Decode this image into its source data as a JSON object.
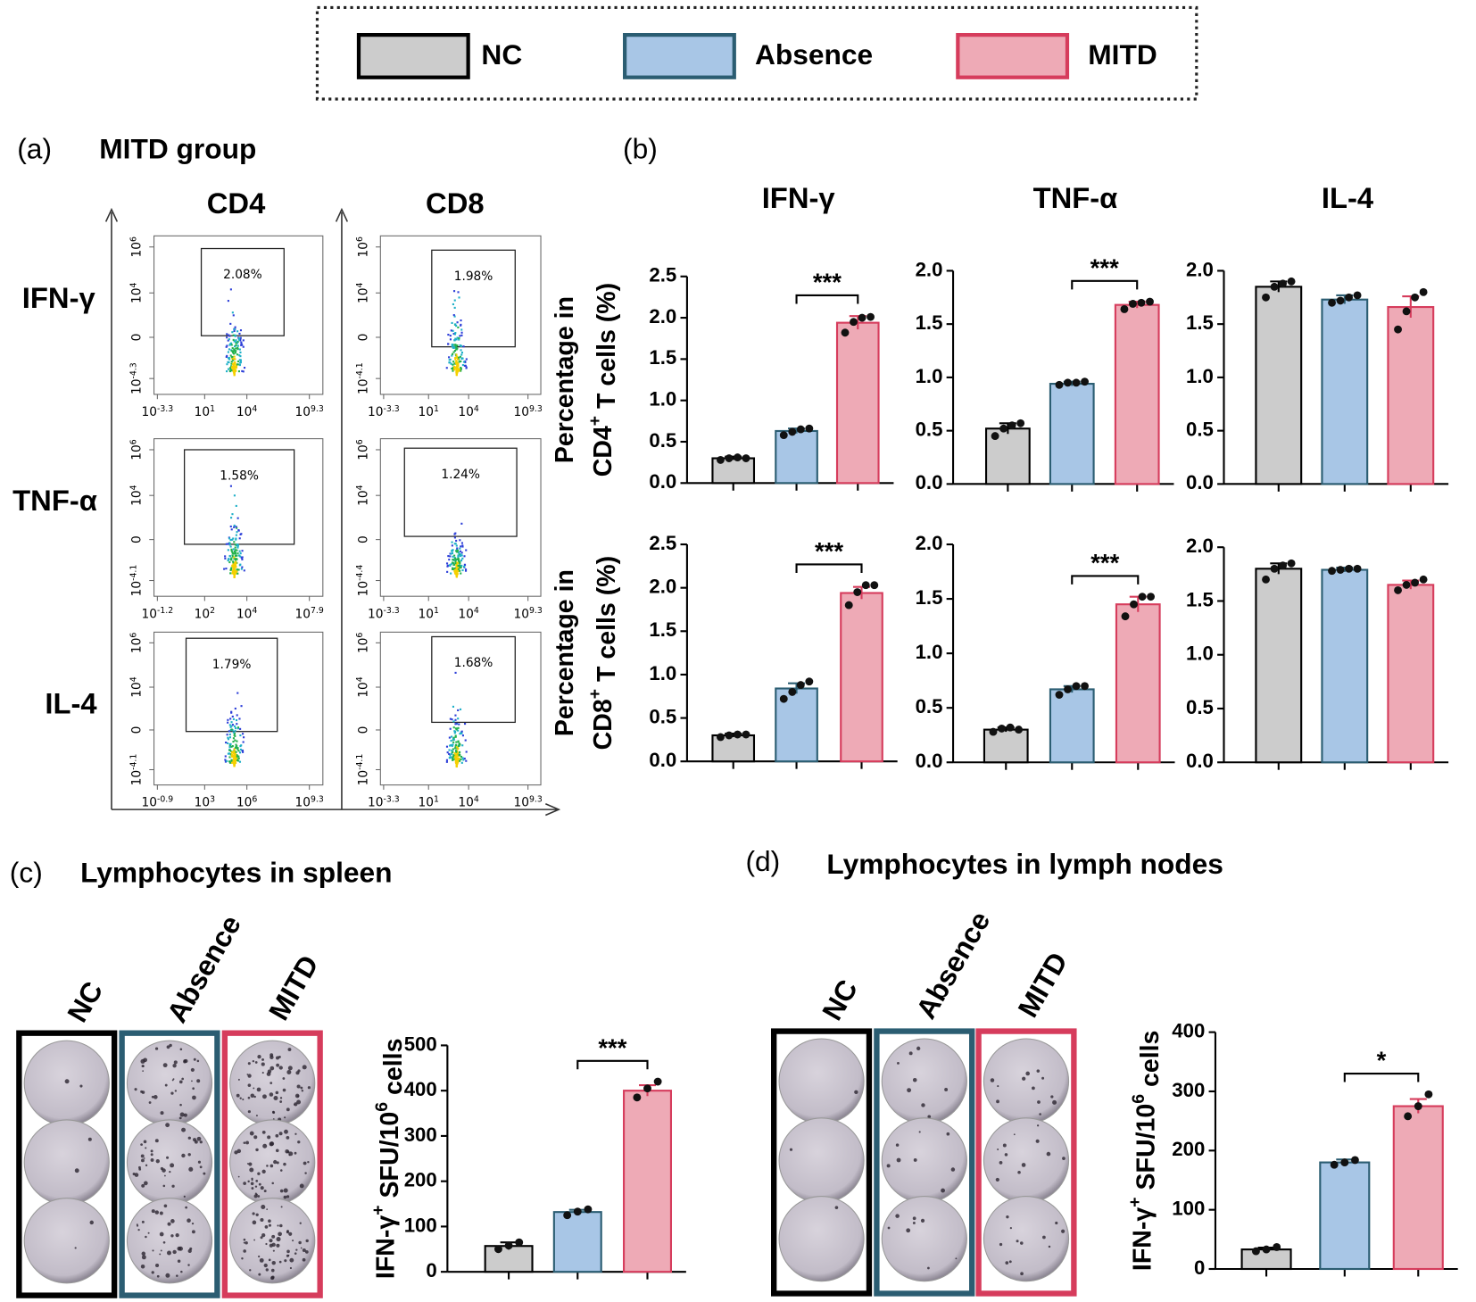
{
  "legend": {
    "items": [
      {
        "name": "NC",
        "color": "#cccccc",
        "border": "#000000"
      },
      {
        "name": "Absence",
        "color": "#a8c6e6",
        "border": "#2b5d72"
      },
      {
        "name": "MITD",
        "color": "#eeaab6",
        "border": "#d63c5c"
      }
    ]
  },
  "panel_a": {
    "label": "(a)",
    "title": "MITD group",
    "columns": [
      "CD4",
      "CD8"
    ],
    "rows": [
      "IFN-γ",
      "TNF-α",
      "IL-4"
    ],
    "plots": [
      [
        {
          "gate": "2.08%",
          "yticks": [
            "10^{6}",
            "10^{4}",
            "0",
            "10^{-4.3}"
          ],
          "xticks": [
            "10^{-3.3}",
            "10^{1}",
            "10^{4}",
            "10^{9.3}"
          ]
        },
        {
          "gate": "1.98%",
          "yticks": [
            "10^{6}",
            "10^{4}",
            "0",
            "10^{-4.1}"
          ],
          "xticks": [
            "10^{-3.3}",
            "10^{1}",
            "10^{4}",
            "10^{9.3}"
          ]
        }
      ],
      [
        {
          "gate": "1.58%",
          "yticks": [
            "10^{6}",
            "10^{4}",
            "0",
            "10^{-4.1}"
          ],
          "xticks": [
            "10^{-1.2}",
            "10^{2}",
            "10^{4}",
            "10^{7.9}"
          ]
        },
        {
          "gate": "1.24%",
          "yticks": [
            "10^{6}",
            "10^{4}",
            "0",
            "10^{-4.4}"
          ],
          "xticks": [
            "10^{-3.3}",
            "10^{1}",
            "10^{4}",
            "10^{9.3}"
          ]
        }
      ],
      [
        {
          "gate": "1.79%",
          "yticks": [
            "10^{6}",
            "10^{4}",
            "0",
            "10^{-4.1}"
          ],
          "xticks": [
            "10^{-0.9}",
            "10^{3}",
            "10^{6}",
            "10^{9.3}"
          ]
        },
        {
          "gate": "1.68%",
          "yticks": [
            "10^{6}",
            "10^{4}",
            "0",
            "10^{-4.1}"
          ],
          "xticks": [
            "10^{-3.3}",
            "10^{1}",
            "10^{4}",
            "10^{9.3}"
          ]
        }
      ]
    ]
  },
  "panel_b": {
    "label": "(b)"
  },
  "panel_c": {
    "label": "(c)",
    "title": "Lymphocytes in spleen",
    "wells": [
      "NC",
      "Absence",
      "MITD"
    ]
  },
  "panel_d": {
    "label": "(d)",
    "title": "Lymphocytes in lymph nodes",
    "wells": [
      "NC",
      "Absence",
      "MITD"
    ]
  },
  "chart_data": [
    {
      "type": "bar",
      "title": "IFN-γ",
      "ylabel": [
        "Percentage in",
        "CD4^{+} T cells (%)"
      ],
      "categories": [
        null,
        null,
        null
      ],
      "values": [
        0.3,
        0.63,
        1.94
      ],
      "errors": [
        0.02,
        0.03,
        0.08
      ],
      "points": [
        [
          0.28,
          0.3,
          0.31,
          0.3
        ],
        [
          0.58,
          0.62,
          0.65,
          0.66
        ],
        [
          1.82,
          1.95,
          2.0,
          2.01
        ]
      ],
      "annotation": "***",
      "ylim": [
        0,
        2.5
      ],
      "yticks": [
        {
          "value": 0,
          "label": "0.0"
        },
        0.5,
        {
          "value": 1,
          "label": "1.0"
        },
        1.5,
        {
          "value": 2,
          "label": "2.0"
        },
        2.5
      ]
    },
    {
      "type": "bar",
      "title": "TNF-α",
      "categories": [
        null,
        null,
        null
      ],
      "values": [
        0.52,
        0.94,
        1.68
      ],
      "errors": [
        0.05,
        0.02,
        0.03
      ],
      "points": [
        [
          0.45,
          0.52,
          0.55,
          0.57
        ],
        [
          0.93,
          0.95,
          0.95,
          0.96
        ],
        [
          1.64,
          1.69,
          1.7,
          1.71
        ]
      ],
      "annotation": "***",
      "ylim": [
        0,
        2.0
      ],
      "yticks": [
        {
          "value": 0,
          "label": "0.0"
        },
        0.5,
        {
          "value": 1,
          "label": "1.0"
        },
        1.5,
        {
          "value": 2,
          "label": "2.0"
        }
      ]
    },
    {
      "type": "bar",
      "title": "IL-4",
      "categories": [
        null,
        null,
        null
      ],
      "values": [
        1.85,
        1.73,
        1.66
      ],
      "errors": [
        0.05,
        0.04,
        0.1
      ],
      "points": [
        [
          1.75,
          1.85,
          1.88,
          1.9
        ],
        [
          1.7,
          1.72,
          1.75,
          1.77
        ],
        [
          1.45,
          1.62,
          1.75,
          1.8
        ]
      ],
      "ylim": [
        0,
        2.0
      ],
      "yticks": [
        {
          "value": 0,
          "label": "0.0"
        },
        0.5,
        {
          "value": 1,
          "label": "1.0"
        },
        1.5,
        {
          "value": 2,
          "label": "2.0"
        }
      ]
    },
    {
      "type": "bar",
      "ylabel": [
        "Percentage in",
        "CD8^{+} T cells (%)"
      ],
      "categories": [
        null,
        null,
        null
      ],
      "values": [
        0.3,
        0.84,
        1.94
      ],
      "errors": [
        0.02,
        0.06,
        0.07
      ],
      "points": [
        [
          0.28,
          0.3,
          0.31,
          0.31
        ],
        [
          0.72,
          0.8,
          0.88,
          0.92
        ],
        [
          1.8,
          1.95,
          2.03,
          2.03
        ]
      ],
      "annotation": "***",
      "ylim": [
        0,
        2.5
      ],
      "yticks": [
        {
          "value": 0,
          "label": "0.0"
        },
        0.5,
        {
          "value": 1,
          "label": "1.0"
        },
        1.5,
        {
          "value": 2,
          "label": "2.0"
        },
        2.5
      ]
    },
    {
      "type": "bar",
      "categories": [
        null,
        null,
        null
      ],
      "values": [
        0.3,
        0.67,
        1.45
      ],
      "errors": [
        0.02,
        0.03,
        0.07
      ],
      "points": [
        [
          0.28,
          0.31,
          0.32,
          0.3
        ],
        [
          0.62,
          0.67,
          0.7,
          0.7
        ],
        [
          1.34,
          1.45,
          1.52,
          1.52
        ]
      ],
      "annotation": "***",
      "ylim": [
        0,
        2.0
      ],
      "yticks": [
        {
          "value": 0,
          "label": "0.0"
        },
        0.5,
        {
          "value": 1,
          "label": "1.0"
        },
        1.5,
        {
          "value": 2,
          "label": "2.0"
        }
      ]
    },
    {
      "type": "bar",
      "categories": [
        null,
        null,
        null
      ],
      "values": [
        1.8,
        1.79,
        1.65
      ],
      "errors": [
        0.05,
        0.02,
        0.04
      ],
      "points": [
        [
          1.7,
          1.8,
          1.83,
          1.85
        ],
        [
          1.78,
          1.79,
          1.8,
          1.8
        ],
        [
          1.6,
          1.65,
          1.67,
          1.7
        ]
      ],
      "ylim": [
        0,
        2.0
      ],
      "yticks": [
        {
          "value": 0,
          "label": "0.0"
        },
        0.5,
        {
          "value": 1,
          "label": "1.0"
        },
        1.5,
        {
          "value": 2,
          "label": "2.0"
        }
      ]
    },
    {
      "type": "bar",
      "ylabel": [
        "IFN-γ^{+} SFU/10^{6} cells"
      ],
      "categories": [
        null,
        null,
        null
      ],
      "values": [
        57,
        132,
        400
      ],
      "errors": [
        8,
        5,
        12
      ],
      "points": [
        [
          50,
          58,
          65
        ],
        [
          125,
          133,
          138
        ],
        [
          385,
          405,
          420
        ]
      ],
      "annotation": "***",
      "ylim": [
        0,
        500
      ],
      "yticks": [
        0,
        100,
        200,
        300,
        400,
        500
      ]
    },
    {
      "type": "bar",
      "ylabel": [
        "IFN-γ^{+} SFU/10^{6} cells"
      ],
      "categories": [
        null,
        null,
        null
      ],
      "values": [
        33,
        180,
        275
      ],
      "errors": [
        3,
        5,
        12
      ],
      "points": [
        [
          30,
          33,
          37
        ],
        [
          176,
          180,
          184
        ],
        [
          258,
          275,
          295
        ]
      ],
      "annotation": "*",
      "ylim": [
        0,
        400
      ],
      "yticks": [
        0,
        100,
        200,
        300,
        400
      ]
    }
  ]
}
